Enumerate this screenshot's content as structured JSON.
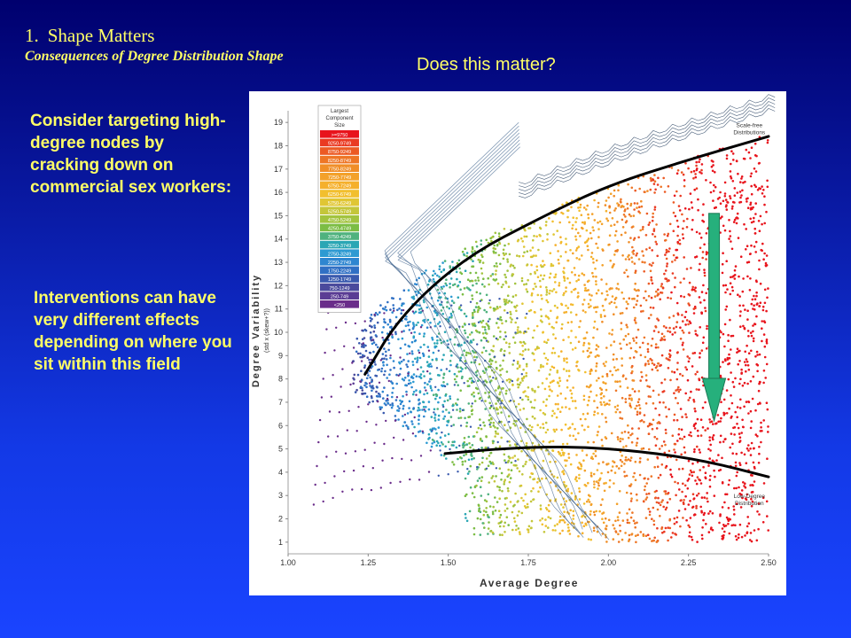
{
  "heading": {
    "number": "1.",
    "title": "Shape Matters",
    "subtitle": "Consequences of Degree Distribution Shape"
  },
  "question": "Does this matter?",
  "left_text": {
    "paragraph1": "Consider targeting high-degree nodes by cracking down on commercial sex workers:",
    "paragraph2": "Interventions can have very different effects depending on where you sit within this field"
  },
  "chart_data": {
    "type": "scatter",
    "xlabel": "Average Degree",
    "ylabel": "Degree Variability",
    "ylabel_sub": "(std x (skew+?))",
    "xlim": [
      1.0,
      2.5
    ],
    "ylim": [
      0.5,
      19.5
    ],
    "x_ticks": [
      "1.00",
      "1.25",
      "1.50",
      "1.75",
      "2.00",
      "2.25",
      "2.50"
    ],
    "y_ticks": [
      "1",
      "2",
      "3",
      "4",
      "5",
      "6",
      "7",
      "8",
      "9",
      "10",
      "11",
      "12",
      "13",
      "14",
      "15",
      "16",
      "17",
      "18",
      "19"
    ],
    "legend": {
      "title_lines": [
        "Largest",
        "Component",
        "Size"
      ],
      "entries": [
        {
          "label": ">=9750",
          "color": "#e8141c"
        },
        {
          "label": "9250-9749",
          "color": "#ea3a22"
        },
        {
          "label": "8750-9249",
          "color": "#ec5a24"
        },
        {
          "label": "8250-8749",
          "color": "#ee7626"
        },
        {
          "label": "7750-8249",
          "color": "#f08e28"
        },
        {
          "label": "7250-7749",
          "color": "#f3a12a"
        },
        {
          "label": "6750-7249",
          "color": "#f5b02c"
        },
        {
          "label": "6250-6749",
          "color": "#f2bf2e"
        },
        {
          "label": "5750-6249",
          "color": "#e0c634"
        },
        {
          "label": "5250-5749",
          "color": "#c4c63a"
        },
        {
          "label": "4750-5249",
          "color": "#a2c33e"
        },
        {
          "label": "4250-4749",
          "color": "#7cbd44"
        },
        {
          "label": "3750-4249",
          "color": "#4fb27e"
        },
        {
          "label": "3250-3749",
          "color": "#2aa6b4"
        },
        {
          "label": "2750-3249",
          "color": "#2d9ad2"
        },
        {
          "label": "2250-2749",
          "color": "#2e86d0"
        },
        {
          "label": "1750-2249",
          "color": "#3070c4"
        },
        {
          "label": "1250-1749",
          "color": "#3a5aae"
        },
        {
          "label": "750-1249",
          "color": "#4a4a9c"
        },
        {
          "label": "250-749",
          "color": "#5a3c94"
        },
        {
          "label": "<250",
          "color": "#6a2c8a"
        }
      ]
    },
    "annotations": [
      {
        "text_lines": [
          "Scale-free",
          "Distributions"
        ],
        "x": 2.44,
        "y": 18.8
      },
      {
        "text_lines": [
          "Low-Degree",
          "Distribution"
        ],
        "x": 2.44,
        "y": 2.9
      }
    ],
    "curves": [
      {
        "name": "upper-boundary-curve",
        "color": "#000000",
        "points": [
          [
            1.24,
            8.2
          ],
          [
            1.35,
            10.7
          ],
          [
            1.55,
            13.2
          ],
          [
            1.8,
            15.0
          ],
          [
            2.0,
            16.3
          ],
          [
            2.25,
            17.4
          ],
          [
            2.5,
            18.4
          ]
        ]
      },
      {
        "name": "lower-boundary-curve",
        "color": "#000000",
        "points": [
          [
            1.49,
            4.8
          ],
          [
            1.7,
            5.05
          ],
          [
            1.9,
            5.1
          ],
          [
            2.1,
            4.9
          ],
          [
            2.3,
            4.5
          ],
          [
            2.5,
            3.8
          ]
        ]
      }
    ],
    "arrow": {
      "color": "#26b07c",
      "x": 2.33,
      "y_from": 15.1,
      "y_to": 6.2
    },
    "grid": false
  }
}
